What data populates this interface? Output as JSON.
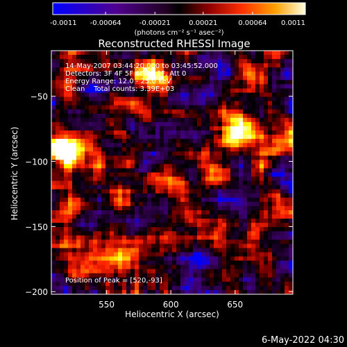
{
  "colorbar": {
    "ticks": [
      "-0.0011",
      "-0.00064",
      "-0.00021",
      "0.00021",
      "0.00064",
      "0.0011"
    ],
    "tick_values": [
      -0.0011,
      -0.00064,
      -0.00021,
      0.00021,
      0.00064,
      0.0011
    ],
    "range": [
      -0.0011,
      0.0011
    ],
    "units_label": "(photons cm⁻² s⁻¹ asec⁻²)"
  },
  "annotations": {
    "time": "14-May-2007 03:44:20.000 to 03:45:52.000",
    "detectors": "Detectors: 3F 4F 5F 6F 7F 8F, Att 0",
    "energy": "Energy Range: 12.0 - 25.0 keV",
    "clean": "Clean    Total counts: 3.39E+03",
    "peak": "Position of Peak = [520,-93]"
  },
  "footer": {
    "timestamp": "6-May-2022 04:30"
  },
  "chart_data": {
    "type": "heatmap",
    "title": "Reconstructed RHESSI Image",
    "xlabel": "Heliocentric X (arcsec)",
    "ylabel": "Heliocentric Y (arcsec)",
    "xlim": [
      507,
      695
    ],
    "ylim": [
      -202,
      -15
    ],
    "x_ticks": [
      550,
      600,
      650
    ],
    "y_ticks": [
      -50,
      -100,
      -150,
      -200
    ],
    "colormap": [
      "#0000ff",
      "#400080",
      "#2a0040",
      "#000000",
      "#800000",
      "#ff2000",
      "#ff8000",
      "#ffff00",
      "#ffffff"
    ],
    "peak_position": [
      520,
      -93
    ],
    "bright_sources": [
      {
        "x": 520,
        "y": -93,
        "intensity": 1.0
      },
      {
        "x": 585,
        "y": -35,
        "intensity": 0.8
      },
      {
        "x": 655,
        "y": -78,
        "intensity": 0.75
      },
      {
        "x": 560,
        "y": -168,
        "intensity": 0.6
      },
      {
        "x": 640,
        "y": -160,
        "intensity": 0.55
      },
      {
        "x": 610,
        "y": -120,
        "intensity": 0.45
      }
    ]
  }
}
